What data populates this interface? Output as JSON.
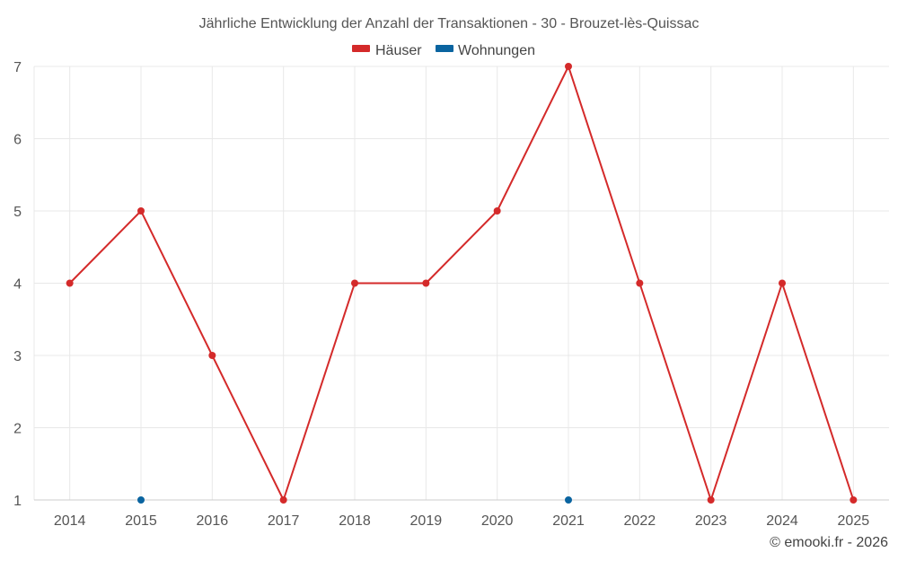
{
  "chart_data": {
    "type": "line",
    "title": "Jährliche Entwicklung der Anzahl der Transaktionen - 30 - Brouzet-lès-Quissac",
    "categories": [
      "2014",
      "2015",
      "2016",
      "2017",
      "2018",
      "2019",
      "2020",
      "2021",
      "2022",
      "2023",
      "2024",
      "2025"
    ],
    "series": [
      {
        "name": "Häuser",
        "color": "#d42a2a",
        "values": [
          4,
          5,
          3,
          1,
          4,
          4,
          5,
          7,
          4,
          1,
          4,
          1
        ]
      },
      {
        "name": "Wohnungen",
        "color": "#0a64a0",
        "values": [
          null,
          1,
          null,
          null,
          null,
          null,
          null,
          1,
          null,
          null,
          null,
          null
        ]
      }
    ],
    "ylim": [
      1,
      7
    ],
    "yticks": [
      1,
      2,
      3,
      4,
      5,
      6,
      7
    ],
    "grid": true,
    "legend": "top-center"
  },
  "credit": "© emooki.fr - 2026"
}
